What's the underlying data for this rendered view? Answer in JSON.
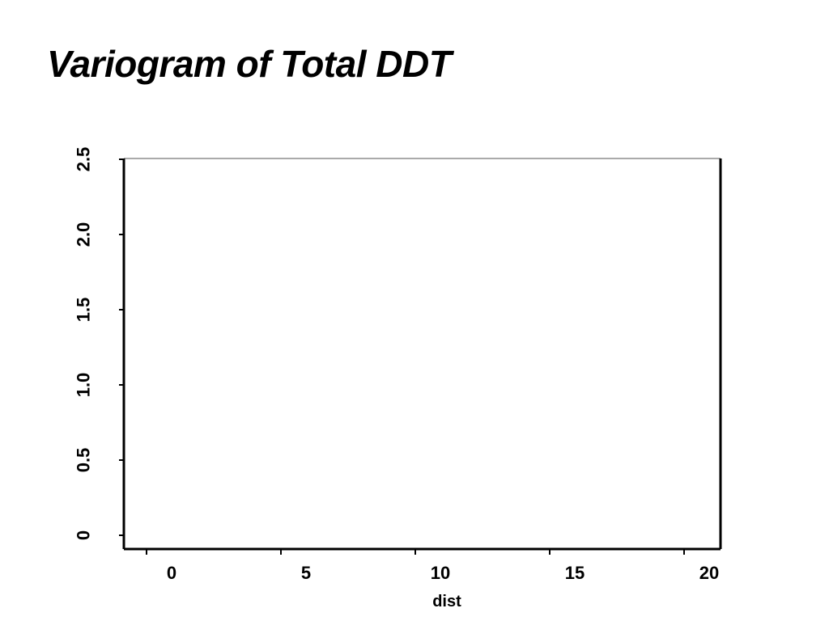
{
  "slide": {
    "title": "Variogram of Total DDT"
  },
  "colors": {
    "background": "#ffffff",
    "axis": "#000000",
    "frame_top": "#777777"
  },
  "chart_data": {
    "type": "scatter",
    "title": "Variogram of Total DDT",
    "xlabel": "dist",
    "ylabel": "",
    "xlim": [
      0,
      20
    ],
    "ylim": [
      0,
      2.5
    ],
    "x_ticks": [
      0,
      5,
      10,
      15,
      20
    ],
    "x_tick_labels": [
      "0",
      "5",
      "10",
      "15",
      "20"
    ],
    "y_ticks": [
      0,
      0.5,
      1.0,
      1.5,
      2.0,
      2.5
    ],
    "y_tick_labels": [
      "0",
      "0.5",
      "1.0",
      "1.5",
      "2.0",
      "2.5"
    ],
    "series": [],
    "grid": false,
    "legend": "none",
    "note_on_tick_labels": "tick and axis label glyphs are rendered illegibly (smeared) in the source; values are best estimates"
  }
}
